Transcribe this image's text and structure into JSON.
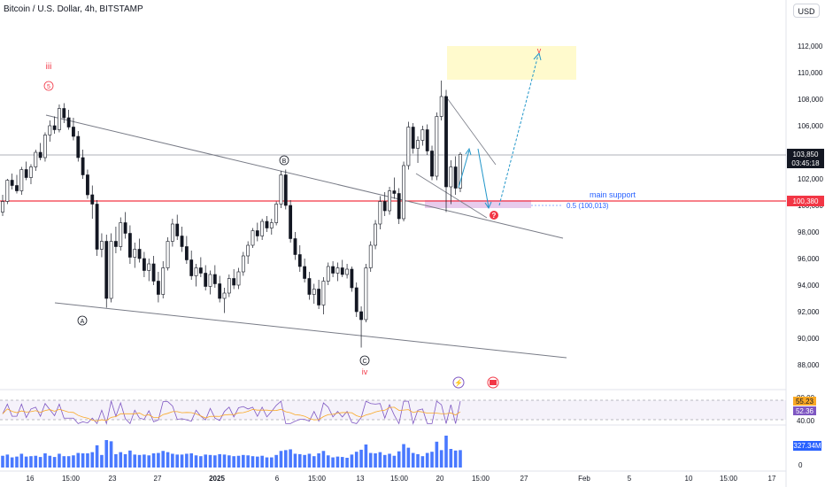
{
  "window": {
    "title": "Bitcoin / U.S. Dollar, 4h, BITSTAMP",
    "currency_button": "USD"
  },
  "colors": {
    "up": "#131722",
    "down": "#131722",
    "red_line": "#f23645",
    "blue": "#2962ff",
    "teal_arrow": "#2196c9",
    "rsi_band": "#7e57c2",
    "volume": "#2962ff",
    "support_zone": "#e1bee7",
    "target_zone": "#fff9c4"
  },
  "price_axis": {
    "ticks": [
      "112,000",
      "110,000",
      "108,000",
      "106,000",
      "104,000",
      "102,000",
      "100,000",
      "98,000",
      "96,000",
      "94,000",
      "92,000",
      "90,000",
      "88,000"
    ],
    "current_price": "103,850",
    "countdown": "03:45:18",
    "support_price": "100,380"
  },
  "time_axis": {
    "labels": [
      "16",
      "15:00",
      "23",
      "27",
      "2025",
      "6",
      "15:00",
      "13",
      "15:00",
      "20",
      "15:00",
      "27",
      "Feb",
      "5",
      "10",
      "15:00",
      "17"
    ]
  },
  "annotations": {
    "wave_iii": "iii",
    "wave_5": "5",
    "wave_A": "A",
    "wave_B": "B",
    "wave_C": "C",
    "wave_iv": "iv",
    "wave_v": "v",
    "main_support": "main support",
    "fib_label": "0.5 (100,013)"
  },
  "rsi": {
    "ticks": [
      "80.00",
      "40.00"
    ],
    "value_a": "55.23",
    "value_b": "52.36"
  },
  "volume": {
    "value": "327.34M",
    "zero": "0"
  },
  "chart_data": {
    "type": "candlestick",
    "series": [
      {
        "o": 99500,
        "h": 100800,
        "l": 99200,
        "c": 100300
      },
      {
        "o": 100300,
        "h": 102000,
        "l": 100100,
        "c": 101900
      },
      {
        "o": 101900,
        "h": 102400,
        "l": 101200,
        "c": 101500
      },
      {
        "o": 101500,
        "h": 102300,
        "l": 100900,
        "c": 101100
      },
      {
        "o": 101100,
        "h": 102900,
        "l": 100800,
        "c": 102700
      },
      {
        "o": 102700,
        "h": 103300,
        "l": 101900,
        "c": 102100
      },
      {
        "o": 102100,
        "h": 103100,
        "l": 101600,
        "c": 102900
      },
      {
        "o": 102900,
        "h": 104200,
        "l": 102600,
        "c": 104000
      },
      {
        "o": 104000,
        "h": 104700,
        "l": 103400,
        "c": 103600
      },
      {
        "o": 103600,
        "h": 105500,
        "l": 103300,
        "c": 105300
      },
      {
        "o": 105300,
        "h": 106400,
        "l": 104800,
        "c": 106000
      },
      {
        "o": 106000,
        "h": 106700,
        "l": 105400,
        "c": 105700
      },
      {
        "o": 105700,
        "h": 107600,
        "l": 105500,
        "c": 107300
      },
      {
        "o": 107300,
        "h": 107700,
        "l": 106200,
        "c": 106600
      },
      {
        "o": 106600,
        "h": 107200,
        "l": 105700,
        "c": 105900
      },
      {
        "o": 105900,
        "h": 106600,
        "l": 104900,
        "c": 105200
      },
      {
        "o": 105200,
        "h": 105600,
        "l": 103300,
        "c": 103600
      },
      {
        "o": 103600,
        "h": 104200,
        "l": 102000,
        "c": 102300
      },
      {
        "o": 102300,
        "h": 102700,
        "l": 100500,
        "c": 100800
      },
      {
        "o": 100800,
        "h": 101500,
        "l": 99000,
        "c": 100100
      },
      {
        "o": 100100,
        "h": 100400,
        "l": 96200,
        "c": 96700
      },
      {
        "o": 96700,
        "h": 97900,
        "l": 96100,
        "c": 97300
      },
      {
        "o": 97300,
        "h": 97800,
        "l": 92300,
        "c": 93000
      },
      {
        "o": 93000,
        "h": 97900,
        "l": 92700,
        "c": 97300
      },
      {
        "o": 97300,
        "h": 98400,
        "l": 96400,
        "c": 96900
      },
      {
        "o": 96900,
        "h": 99100,
        "l": 96600,
        "c": 98700
      },
      {
        "o": 98700,
        "h": 99500,
        "l": 97500,
        "c": 97900
      },
      {
        "o": 97900,
        "h": 98500,
        "l": 95600,
        "c": 96100
      },
      {
        "o": 96100,
        "h": 97200,
        "l": 95300,
        "c": 96700
      },
      {
        "o": 96700,
        "h": 97500,
        "l": 95700,
        "c": 96000
      },
      {
        "o": 96000,
        "h": 96500,
        "l": 94600,
        "c": 95100
      },
      {
        "o": 95100,
        "h": 96000,
        "l": 94300,
        "c": 95600
      },
      {
        "o": 95600,
        "h": 96200,
        "l": 94000,
        "c": 94300
      },
      {
        "o": 94300,
        "h": 95000,
        "l": 92700,
        "c": 93300
      },
      {
        "o": 93300,
        "h": 95800,
        "l": 93000,
        "c": 95300
      },
      {
        "o": 95300,
        "h": 97600,
        "l": 95100,
        "c": 97300
      },
      {
        "o": 97300,
        "h": 99000,
        "l": 96900,
        "c": 98600
      },
      {
        "o": 98600,
        "h": 99300,
        "l": 97400,
        "c": 97700
      },
      {
        "o": 97700,
        "h": 98400,
        "l": 96500,
        "c": 96900
      },
      {
        "o": 96900,
        "h": 97700,
        "l": 95600,
        "c": 95900
      },
      {
        "o": 95900,
        "h": 96600,
        "l": 94400,
        "c": 94700
      },
      {
        "o": 94700,
        "h": 95600,
        "l": 93900,
        "c": 95300
      },
      {
        "o": 95300,
        "h": 96100,
        "l": 94600,
        "c": 94900
      },
      {
        "o": 94900,
        "h": 95500,
        "l": 93600,
        "c": 93900
      },
      {
        "o": 93900,
        "h": 95100,
        "l": 93300,
        "c": 94800
      },
      {
        "o": 94800,
        "h": 95500,
        "l": 93800,
        "c": 94100
      },
      {
        "o": 94100,
        "h": 94700,
        "l": 92700,
        "c": 93000
      },
      {
        "o": 93000,
        "h": 93800,
        "l": 91900,
        "c": 93400
      },
      {
        "o": 93400,
        "h": 94800,
        "l": 93100,
        "c": 94500
      },
      {
        "o": 94500,
        "h": 95200,
        "l": 93700,
        "c": 94000
      },
      {
        "o": 94000,
        "h": 95300,
        "l": 93700,
        "c": 95000
      },
      {
        "o": 95000,
        "h": 96500,
        "l": 94700,
        "c": 96200
      },
      {
        "o": 96200,
        "h": 97300,
        "l": 95600,
        "c": 97000
      },
      {
        "o": 97000,
        "h": 98300,
        "l": 96800,
        "c": 98100
      },
      {
        "o": 98100,
        "h": 98700,
        "l": 97300,
        "c": 97700
      },
      {
        "o": 97700,
        "h": 99000,
        "l": 97400,
        "c": 98800
      },
      {
        "o": 98800,
        "h": 99200,
        "l": 98000,
        "c": 98300
      },
      {
        "o": 98300,
        "h": 99000,
        "l": 97800,
        "c": 98700
      },
      {
        "o": 98700,
        "h": 100300,
        "l": 98500,
        "c": 100100
      },
      {
        "o": 100100,
        "h": 102600,
        "l": 99800,
        "c": 102300
      },
      {
        "o": 102300,
        "h": 102700,
        "l": 99700,
        "c": 100000
      },
      {
        "o": 100000,
        "h": 100400,
        "l": 97200,
        "c": 97500
      },
      {
        "o": 97500,
        "h": 98000,
        "l": 95900,
        "c": 96300
      },
      {
        "o": 96300,
        "h": 97000,
        "l": 95000,
        "c": 95400
      },
      {
        "o": 95400,
        "h": 96000,
        "l": 94200,
        "c": 94500
      },
      {
        "o": 94500,
        "h": 95000,
        "l": 92900,
        "c": 93300
      },
      {
        "o": 93300,
        "h": 94100,
        "l": 92600,
        "c": 93700
      },
      {
        "o": 93700,
        "h": 94400,
        "l": 92200,
        "c": 92500
      },
      {
        "o": 92500,
        "h": 94600,
        "l": 91800,
        "c": 94300
      },
      {
        "o": 94300,
        "h": 95700,
        "l": 94000,
        "c": 95400
      },
      {
        "o": 95400,
        "h": 95800,
        "l": 94600,
        "c": 94900
      },
      {
        "o": 94900,
        "h": 95700,
        "l": 94300,
        "c": 95300
      },
      {
        "o": 95300,
        "h": 95900,
        "l": 94600,
        "c": 94800
      },
      {
        "o": 94800,
        "h": 95600,
        "l": 94500,
        "c": 95200
      },
      {
        "o": 95200,
        "h": 95400,
        "l": 93500,
        "c": 93800
      },
      {
        "o": 93800,
        "h": 94200,
        "l": 91600,
        "c": 92000
      },
      {
        "o": 92000,
        "h": 92400,
        "l": 89300,
        "c": 91400
      },
      {
        "o": 91400,
        "h": 95600,
        "l": 91200,
        "c": 95300
      },
      {
        "o": 95300,
        "h": 97300,
        "l": 95000,
        "c": 97000
      },
      {
        "o": 97000,
        "h": 98900,
        "l": 96700,
        "c": 98600
      },
      {
        "o": 98600,
        "h": 100700,
        "l": 98200,
        "c": 100300
      },
      {
        "o": 100300,
        "h": 101000,
        "l": 99200,
        "c": 99600
      },
      {
        "o": 99600,
        "h": 101400,
        "l": 99300,
        "c": 101100
      },
      {
        "o": 101100,
        "h": 102100,
        "l": 100500,
        "c": 100900
      },
      {
        "o": 100900,
        "h": 101300,
        "l": 98600,
        "c": 99000
      },
      {
        "o": 99000,
        "h": 103300,
        "l": 98800,
        "c": 103000
      },
      {
        "o": 103000,
        "h": 106300,
        "l": 102700,
        "c": 105900
      },
      {
        "o": 105900,
        "h": 106200,
        "l": 103900,
        "c": 104300
      },
      {
        "o": 104300,
        "h": 105200,
        "l": 103200,
        "c": 104900
      },
      {
        "o": 104900,
        "h": 106000,
        "l": 104500,
        "c": 105700
      },
      {
        "o": 105700,
        "h": 106100,
        "l": 103800,
        "c": 104100
      },
      {
        "o": 104100,
        "h": 104500,
        "l": 101900,
        "c": 102200
      },
      {
        "o": 102200,
        "h": 107000,
        "l": 101900,
        "c": 106700
      },
      {
        "o": 106700,
        "h": 109400,
        "l": 106400,
        "c": 108200
      },
      {
        "o": 108200,
        "h": 108700,
        "l": 99500,
        "c": 101400
      },
      {
        "o": 101400,
        "h": 103400,
        "l": 100100,
        "c": 102900
      },
      {
        "o": 102900,
        "h": 103700,
        "l": 100800,
        "c": 101300
      },
      {
        "o": 101300,
        "h": 104000,
        "l": 101000,
        "c": 103850
      }
    ],
    "lines": [
      {
        "name": "current price",
        "value": 103850
      },
      {
        "name": "support",
        "value": 100380
      }
    ],
    "ylim": [
      87000,
      113000
    ]
  }
}
